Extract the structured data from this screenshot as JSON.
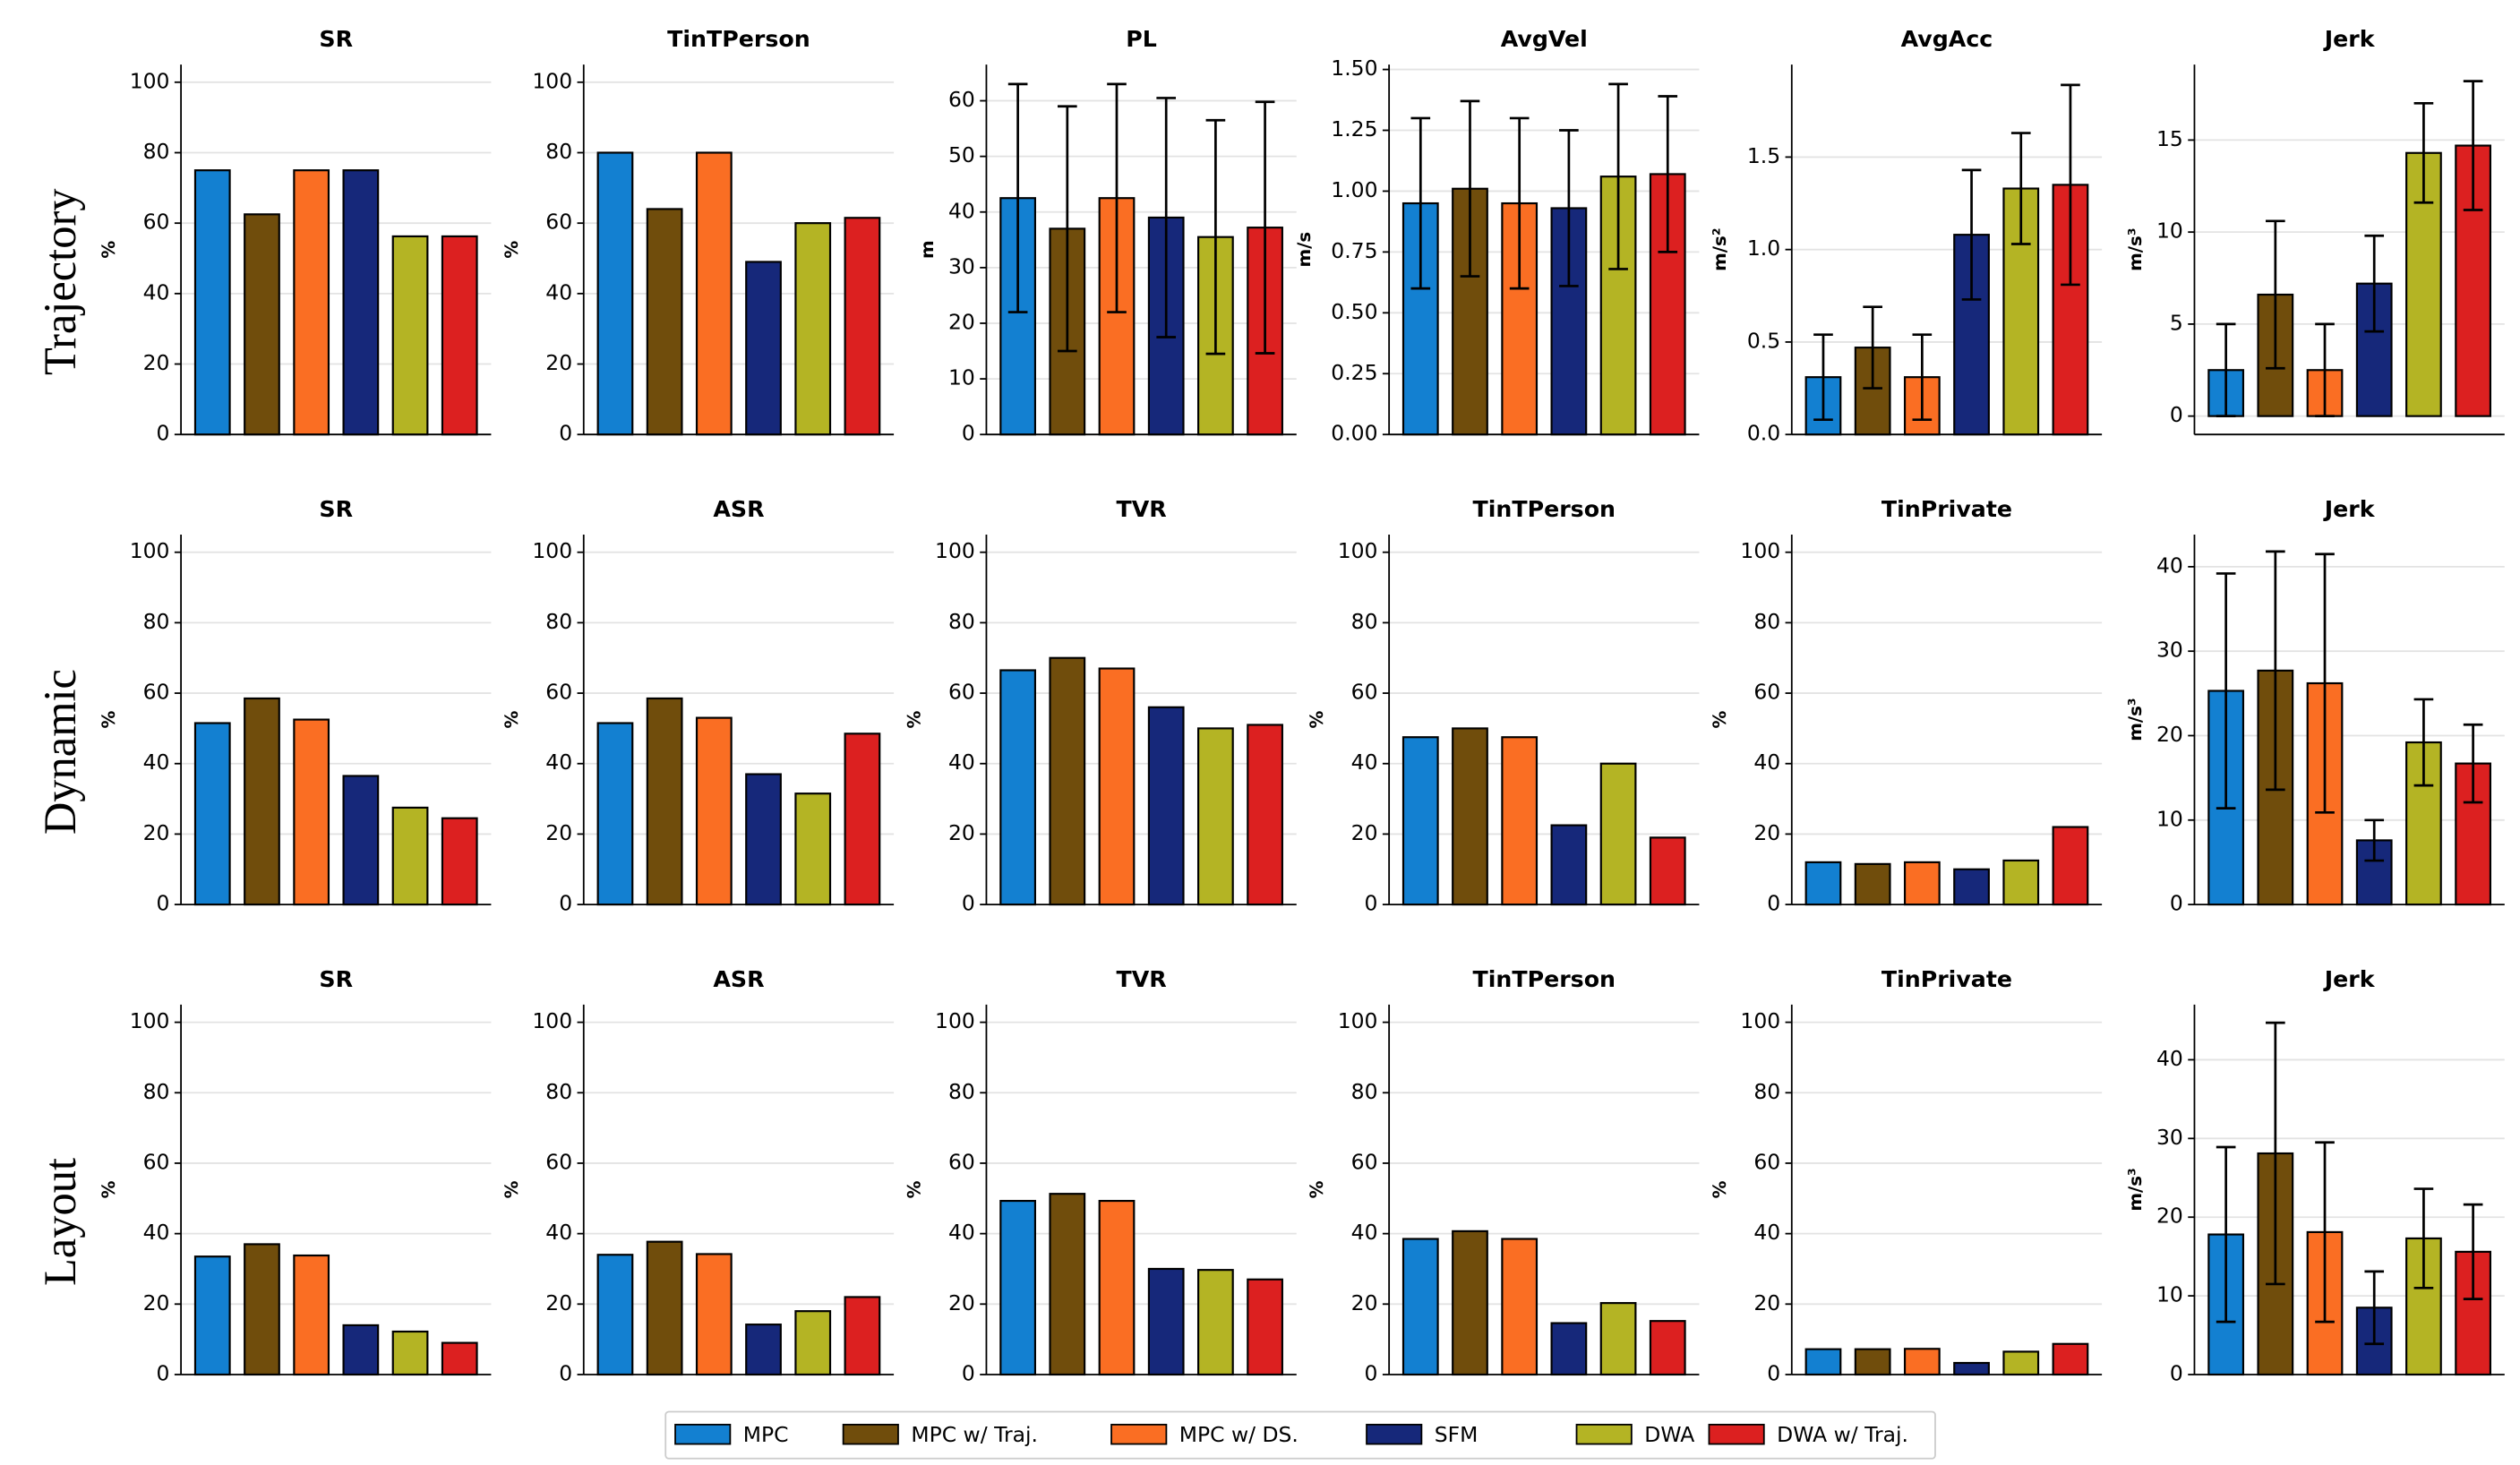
{
  "row_labels": [
    "Trajectory",
    "Dynamic",
    "Layout"
  ],
  "legend": [
    {
      "name": "MPC",
      "color": "#1380d1"
    },
    {
      "name": "MPC w/ Traj.",
      "color": "#704d0c"
    },
    {
      "name": "MPC w/ DS.",
      "color": "#fa6e23"
    },
    {
      "name": "SFM",
      "color": "#16287a"
    },
    {
      "name": "DWA",
      "color": "#b4b424"
    },
    {
      "name": "DWA w/ Traj.",
      "color": "#dc2020"
    }
  ],
  "chart_data": [
    {
      "type": "bar",
      "title": "SR",
      "ylabel": "%",
      "values": [
        75,
        62.5,
        75,
        75,
        56.25,
        56.25
      ],
      "ylim": [
        0,
        105
      ],
      "yticks": [
        0,
        20,
        40,
        60,
        80,
        100
      ],
      "grid": true
    },
    {
      "type": "bar",
      "title": "TinTPerson",
      "ylabel": "%",
      "values": [
        80,
        64,
        80,
        49,
        60,
        61.5
      ],
      "ylim": [
        0,
        105
      ],
      "yticks": [
        0,
        20,
        40,
        60,
        80,
        100
      ],
      "grid": true
    },
    {
      "type": "bar",
      "title": "PL",
      "ylabel": "m",
      "values": [
        42.5,
        37,
        42.5,
        39,
        35.5,
        37.2
      ],
      "errors": [
        20.5,
        22,
        20.5,
        21.5,
        21,
        22.6
      ],
      "ylim": [
        0,
        66.5
      ],
      "yticks": [
        0,
        10,
        20,
        30,
        40,
        50,
        60
      ],
      "grid": true
    },
    {
      "type": "bar",
      "title": "AvgVel",
      "ylabel": "m/s",
      "values": [
        0.95,
        1.01,
        0.95,
        0.93,
        1.06,
        1.07
      ],
      "errors": [
        0.35,
        0.36,
        0.35,
        0.32,
        0.38,
        0.32
      ],
      "ylim": [
        0,
        1.52
      ],
      "yticks": [
        {
          "value": 0,
          "label": "0.00"
        },
        0.25,
        {
          "value": 0.5,
          "label": "0.50"
        },
        0.75,
        {
          "value": 1,
          "label": "1.00"
        },
        1.25,
        {
          "value": 1.5,
          "label": "1.50"
        }
      ],
      "grid": true
    },
    {
      "type": "bar",
      "title": "AvgAcc",
      "ylabel": "m/s²",
      "values": [
        0.31,
        0.47,
        0.31,
        1.08,
        1.33,
        1.35
      ],
      "errors": [
        0.23,
        0.22,
        0.23,
        0.35,
        0.3,
        0.54
      ],
      "ylim": [
        0,
        2.0
      ],
      "yticks": [
        {
          "value": 0,
          "label": "0.0"
        },
        0.5,
        {
          "value": 1,
          "label": "1.0"
        },
        1.5
      ],
      "grid": true
    },
    {
      "type": "bar",
      "title": "Jerk",
      "ylabel": "m/s³",
      "values": [
        2.5,
        6.6,
        2.5,
        7.2,
        14.3,
        14.7
      ],
      "errors": [
        2.5,
        4,
        2.5,
        2.6,
        2.7,
        3.5
      ],
      "ylim": [
        -1,
        19.1
      ],
      "yticks": [
        0,
        5,
        10,
        15
      ],
      "grid": true
    },
    {
      "type": "bar",
      "title": "SR",
      "ylabel": "%",
      "values": [
        51.5,
        58.5,
        52.5,
        36.5,
        27.5,
        24.5
      ],
      "ylim": [
        0,
        105
      ],
      "yticks": [
        0,
        20,
        40,
        60,
        80,
        100
      ],
      "grid": true
    },
    {
      "type": "bar",
      "title": "ASR",
      "ylabel": "%",
      "values": [
        51.5,
        58.5,
        53,
        37,
        31.5,
        48.5
      ],
      "ylim": [
        0,
        105
      ],
      "yticks": [
        0,
        20,
        40,
        60,
        80,
        100
      ],
      "grid": true
    },
    {
      "type": "bar",
      "title": "TVR",
      "ylabel": "%",
      "values": [
        66.5,
        70,
        67,
        56,
        50,
        51
      ],
      "ylim": [
        0,
        105
      ],
      "yticks": [
        0,
        20,
        40,
        60,
        80,
        100
      ],
      "grid": true
    },
    {
      "type": "bar",
      "title": "TinTPerson",
      "ylabel": "%",
      "values": [
        47.5,
        50,
        47.5,
        22.5,
        40,
        19
      ],
      "ylim": [
        0,
        105
      ],
      "yticks": [
        0,
        20,
        40,
        60,
        80,
        100
      ],
      "grid": true
    },
    {
      "type": "bar",
      "title": "TinPrivate",
      "ylabel": "%",
      "values": [
        12,
        11.5,
        12,
        10,
        12.5,
        22
      ],
      "ylim": [
        0,
        105
      ],
      "yticks": [
        0,
        20,
        40,
        60,
        80,
        100
      ],
      "grid": true
    },
    {
      "type": "bar",
      "title": "Jerk",
      "ylabel": "m/s³",
      "values": [
        25.3,
        27.7,
        26.2,
        7.6,
        19.2,
        16.7
      ],
      "errors": [
        13.9,
        14.1,
        15.3,
        2.4,
        5.1,
        4.6
      ],
      "ylim": [
        0,
        43.8
      ],
      "yticks": [
        0,
        10,
        20,
        30,
        40
      ],
      "grid": true
    },
    {
      "type": "bar",
      "title": "SR",
      "ylabel": "%",
      "values": [
        33.5,
        37,
        33.8,
        14,
        12.2,
        9
      ],
      "ylim": [
        0,
        105
      ],
      "yticks": [
        0,
        20,
        40,
        60,
        80,
        100
      ],
      "grid": true
    },
    {
      "type": "bar",
      "title": "ASR",
      "ylabel": "%",
      "values": [
        34,
        37.7,
        34.2,
        14.2,
        18,
        22
      ],
      "ylim": [
        0,
        105
      ],
      "yticks": [
        0,
        20,
        40,
        60,
        80,
        100
      ],
      "grid": true
    },
    {
      "type": "bar",
      "title": "TVR",
      "ylabel": "%",
      "values": [
        49.3,
        51.3,
        49.3,
        30,
        29.7,
        27
      ],
      "ylim": [
        0,
        105
      ],
      "yticks": [
        0,
        20,
        40,
        60,
        80,
        100
      ],
      "grid": true
    },
    {
      "type": "bar",
      "title": "TinTPerson",
      "ylabel": "%",
      "values": [
        38.5,
        40.7,
        38.5,
        14.6,
        20.3,
        15.2
      ],
      "ylim": [
        0,
        105
      ],
      "yticks": [
        0,
        20,
        40,
        60,
        80,
        100
      ],
      "grid": true
    },
    {
      "type": "bar",
      "title": "TinPrivate",
      "ylabel": "%",
      "values": [
        7.2,
        7.2,
        7.3,
        3.3,
        6.5,
        8.7
      ],
      "ylim": [
        0,
        105
      ],
      "yticks": [
        0,
        20,
        40,
        60,
        80,
        100
      ],
      "grid": true
    },
    {
      "type": "bar",
      "title": "Jerk",
      "ylabel": "m/s³",
      "values": [
        17.8,
        28.1,
        18.1,
        8.5,
        17.3,
        15.6
      ],
      "errors": [
        11.1,
        16.6,
        11.4,
        4.6,
        6.3,
        6
      ],
      "ylim": [
        0,
        47
      ],
      "yticks": [
        0,
        10,
        20,
        30,
        40
      ],
      "grid": true
    }
  ]
}
